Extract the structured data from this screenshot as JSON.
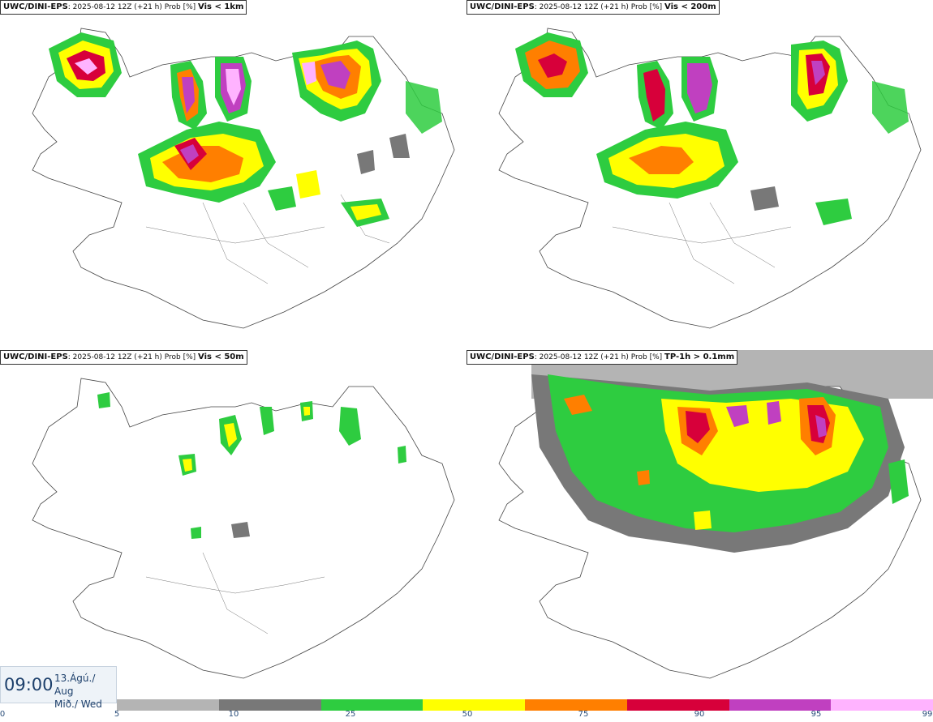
{
  "panels": [
    {
      "model": "UWC/DINI-EPS",
      "run": ": 2025-08-12 12Z (+21 h) Prob [%]",
      "var": "Vis < 1km"
    },
    {
      "model": "UWC/DINI-EPS",
      "run": ": 2025-08-12 12Z (+21 h) Prob [%]",
      "var": "Vis < 200m"
    },
    {
      "model": "UWC/DINI-EPS",
      "run": ": 2025-08-12 12Z (+21 h) Prob [%]",
      "var": "Vis < 50m"
    },
    {
      "model": "UWC/DINI-EPS",
      "run": ": 2025-08-12 12Z (+21 h) Prob [%]",
      "var": "TP-1h > 0.1mm"
    }
  ],
  "valid_time": {
    "time": "09:00",
    "date_line1": "13.Ágú./ Aug",
    "date_line2": "Mið./ Wed"
  },
  "colorbar": {
    "ticks": [
      "0",
      "5",
      "10",
      "25",
      "50",
      "75",
      "90",
      "95",
      "99"
    ],
    "colors": [
      "#ffffff",
      "#b4b4b4",
      "#787878",
      "#2ecc40",
      "#ffff00",
      "#ff7f00",
      "#d7003a",
      "#c040c0",
      "#ffb3ff"
    ]
  }
}
